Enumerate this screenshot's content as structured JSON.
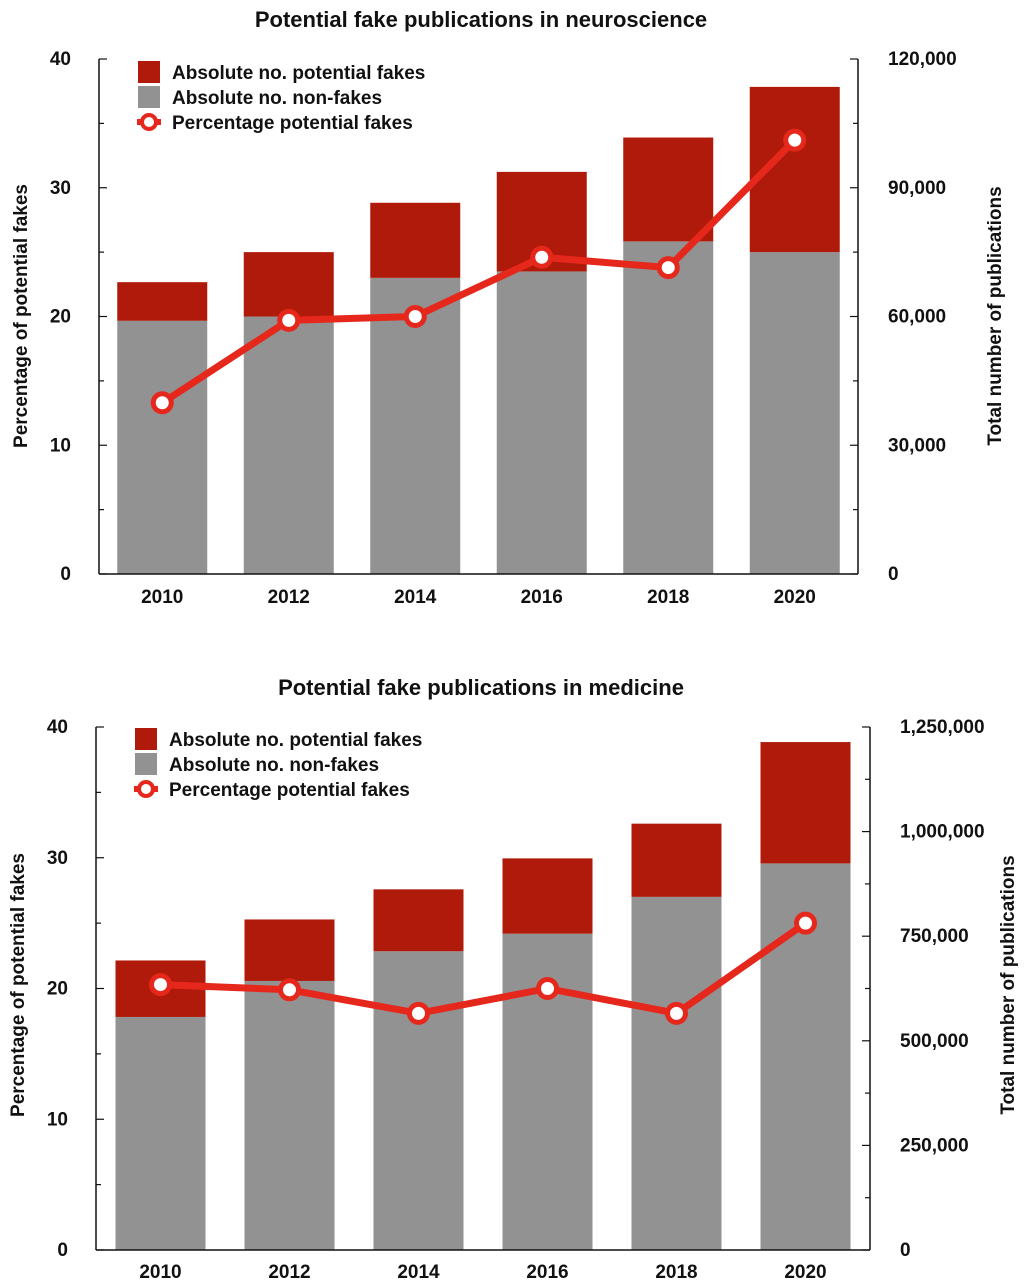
{
  "colors": {
    "fakes": "#b01a0a",
    "nonfakes": "#929292",
    "line": "#e6281c",
    "marker_fill": "#ffffff"
  },
  "legend": {
    "fakes": "Absolute no. potential fakes",
    "nonfakes": "Absolute no. non-fakes",
    "percentage": "Percentage potential fakes"
  },
  "chart_data": [
    {
      "type": "bar",
      "title": "Potential fake publications in neuroscience",
      "ylabel_left": "Percentage of potential fakes",
      "ylabel_right": "Total number of publications",
      "categories": [
        "2010",
        "2012",
        "2014",
        "2016",
        "2018",
        "2020"
      ],
      "ylim_left": [
        0,
        40
      ],
      "ylim_right": [
        0,
        120000
      ],
      "left_ticks": [
        "0",
        "10",
        "20",
        "30",
        "40"
      ],
      "right_ticks": [
        "0",
        "30,000",
        "60,000",
        "90,000",
        "120,000"
      ],
      "series": [
        {
          "name": "Absolute no. non-fakes",
          "axis": "right",
          "stack": true,
          "values": [
            59000,
            60000,
            69000,
            70500,
            77500,
            75000
          ]
        },
        {
          "name": "Absolute no. potential fakes",
          "axis": "right",
          "stack": true,
          "values": [
            9000,
            15000,
            17500,
            23200,
            24200,
            38500
          ]
        },
        {
          "name": "Percentage potential fakes",
          "axis": "left",
          "type": "line",
          "values": [
            13.3,
            19.7,
            20.0,
            24.6,
            23.8,
            33.7
          ]
        }
      ]
    },
    {
      "type": "bar",
      "title": "Potential fake publications in medicine",
      "ylabel_left": "Percentage of potential fakes",
      "ylabel_right": "Total number of publications",
      "categories": [
        "2010",
        "2012",
        "2014",
        "2016",
        "2018",
        "2020"
      ],
      "ylim_left": [
        0,
        40
      ],
      "ylim_right": [
        0,
        1250000
      ],
      "left_ticks": [
        "0",
        "10",
        "20",
        "30",
        "40"
      ],
      "right_ticks": [
        "0",
        "250,000",
        "500,000",
        "750,000",
        "1,000,000",
        "1,250,000"
      ],
      "series": [
        {
          "name": "Absolute no. non-fakes",
          "axis": "right",
          "stack": true,
          "values": [
            557000,
            643000,
            714000,
            756000,
            844000,
            924000
          ]
        },
        {
          "name": "Absolute no. potential fakes",
          "axis": "right",
          "stack": true,
          "values": [
            135000,
            147000,
            148000,
            180000,
            175000,
            290000
          ]
        },
        {
          "name": "Percentage potential fakes",
          "axis": "left",
          "type": "line",
          "values": [
            20.3,
            19.9,
            18.1,
            20.0,
            18.1,
            25.0
          ]
        }
      ]
    }
  ]
}
